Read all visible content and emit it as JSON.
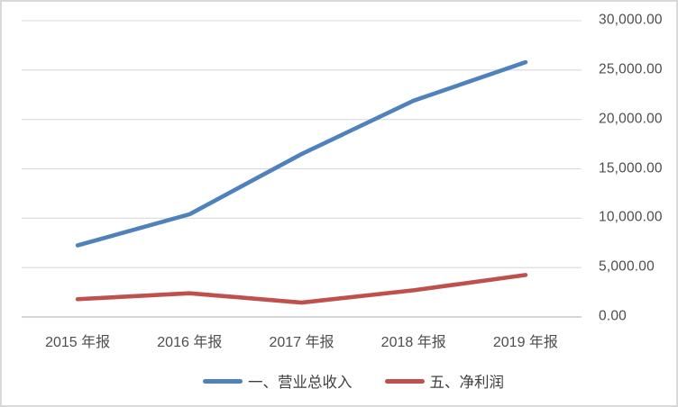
{
  "chart_data": {
    "type": "line",
    "title": "",
    "xlabel": "",
    "ylabel": "",
    "categories": [
      "2015 年报",
      "2016 年报",
      "2017 年报",
      "2018 年报",
      "2019 年报"
    ],
    "series": [
      {
        "name": "一、营业总收入",
        "color": "#4F81BD",
        "values": [
          7250,
          10400,
          16500,
          21900,
          25800
        ]
      },
      {
        "name": "五、净利润",
        "color": "#C0504D",
        "values": [
          1800,
          2400,
          1450,
          2700,
          4250
        ]
      }
    ],
    "ylim": [
      0,
      30000
    ],
    "ytick_step": 5000,
    "yticks": [
      0,
      5000,
      10000,
      15000,
      20000,
      25000,
      30000
    ],
    "ytick_labels": [
      "0.00",
      "5,000.00",
      "10,000.00",
      "15,000.00",
      "20,000.00",
      "25,000.00",
      "30,000.00"
    ],
    "y_axis_side": "right",
    "grid": "horizontal-major",
    "legend_position": "bottom-center"
  },
  "theme": {
    "background": "#FFFFFF",
    "border_color": "#D9D9D9",
    "gridline_color": "#D9D9D9",
    "axis_line_color": "#C9C9C9",
    "tick_label_color": "#4D4D4D",
    "legend_text_color": "#3F3F3F"
  }
}
